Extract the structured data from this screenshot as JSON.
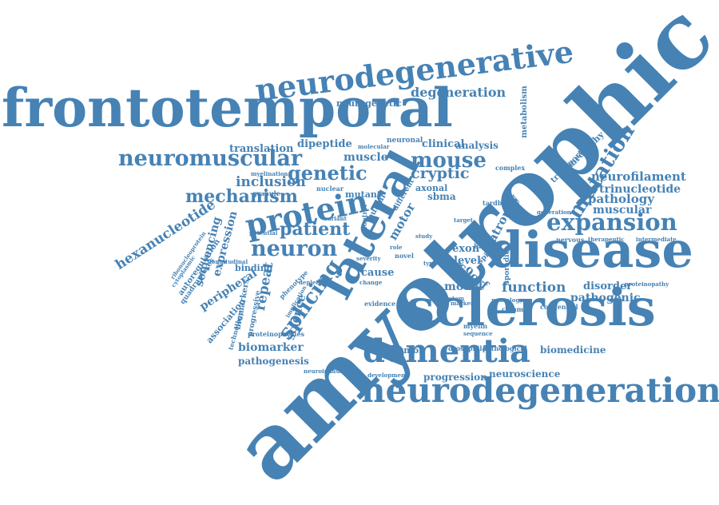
{
  "word_color": "#4682b4",
  "background": "#ffffff",
  "words": [
    {
      "text": "amyotrophic",
      "emphasis": "largest",
      "orientation": "diagonal-up"
    },
    {
      "text": "frontotemporal",
      "emphasis": "very-large",
      "orientation": "horizontal"
    },
    {
      "text": "sclerosis",
      "emphasis": "very-large",
      "orientation": "horizontal"
    },
    {
      "text": "disease",
      "emphasis": "very-large",
      "orientation": "horizontal"
    },
    {
      "text": "neurodegeneration",
      "emphasis": "large",
      "orientation": "horizontal"
    },
    {
      "text": "lateral",
      "emphasis": "large",
      "orientation": "diagonal-up"
    },
    {
      "text": "neurodegenerative",
      "emphasis": "large",
      "orientation": "slight-tilt"
    },
    {
      "text": "dementia",
      "emphasis": "large",
      "orientation": "horizontal"
    },
    {
      "text": "protein",
      "emphasis": "large",
      "orientation": "slight-tilt"
    },
    {
      "text": "neuromuscular",
      "emphasis": "medium",
      "orientation": "horizontal"
    },
    {
      "text": "expansion",
      "emphasis": "medium",
      "orientation": "horizontal"
    },
    {
      "text": "mutation",
      "emphasis": "medium",
      "orientation": "diagonal-up"
    },
    {
      "text": "genetic",
      "emphasis": "medium",
      "orientation": "horizontal"
    },
    {
      "text": "mouse",
      "emphasis": "medium",
      "orientation": "horizontal"
    },
    {
      "text": "neuron",
      "emphasis": "medium",
      "orientation": "horizontal"
    },
    {
      "text": "patient",
      "emphasis": "medium",
      "orientation": "horizontal"
    },
    {
      "text": "mechanism",
      "emphasis": "medium",
      "orientation": "horizontal"
    },
    {
      "text": "splicing",
      "emphasis": "medium",
      "orientation": "diagonal-up"
    },
    {
      "text": "degeneration",
      "emphasis": "small",
      "orientation": "horizontal"
    },
    {
      "text": "neurogenetic",
      "emphasis": "small",
      "orientation": "horizontal"
    },
    {
      "text": "metabolism",
      "emphasis": "small",
      "orientation": "vertical"
    },
    {
      "text": "translation",
      "emphasis": "small",
      "orientation": "horizontal"
    },
    {
      "text": "dipeptide",
      "emphasis": "small",
      "orientation": "horizontal"
    },
    {
      "text": "cryptic",
      "emphasis": "small",
      "orientation": "horizontal"
    },
    {
      "text": "muscle",
      "emphasis": "small",
      "orientation": "horizontal"
    },
    {
      "text": "clinical",
      "emphasis": "small",
      "orientation": "horizontal"
    },
    {
      "text": "analysis",
      "emphasis": "small",
      "orientation": "horizontal"
    },
    {
      "text": "inclusion",
      "emphasis": "small",
      "orientation": "horizontal"
    },
    {
      "text": "neurofilament",
      "emphasis": "small",
      "orientation": "horizontal"
    },
    {
      "text": "trinucleotide",
      "emphasis": "small",
      "orientation": "horizontal"
    },
    {
      "text": "pathology",
      "emphasis": "small",
      "orientation": "horizontal"
    },
    {
      "text": "muscular",
      "emphasis": "small",
      "orientation": "horizontal"
    },
    {
      "text": "hexanucleotide",
      "emphasis": "small",
      "orientation": "diagonal-up"
    },
    {
      "text": "sequencing",
      "emphasis": "small",
      "orientation": "vertical"
    },
    {
      "text": "expression",
      "emphasis": "small",
      "orientation": "vertical"
    },
    {
      "text": "repeat",
      "emphasis": "small",
      "orientation": "vertical"
    },
    {
      "text": "science",
      "emphasis": "small",
      "orientation": "vertical"
    },
    {
      "text": "peripheral",
      "emphasis": "small",
      "orientation": "diagonal-up"
    },
    {
      "text": "biomarker",
      "emphasis": "small",
      "orientation": "horizontal"
    },
    {
      "text": "pathogenesis",
      "emphasis": "small",
      "orientation": "horizontal"
    },
    {
      "text": "function",
      "emphasis": "small",
      "orientation": "horizontal"
    },
    {
      "text": "disorder",
      "emphasis": "small",
      "orientation": "horizontal"
    },
    {
      "text": "pathogenic",
      "emphasis": "small",
      "orientation": "horizontal"
    },
    {
      "text": "biomedicine",
      "emphasis": "small",
      "orientation": "horizontal"
    },
    {
      "text": "neuroscience",
      "emphasis": "small",
      "orientation": "horizontal"
    },
    {
      "text": "progression",
      "emphasis": "small",
      "orientation": "horizontal"
    },
    {
      "text": "plasmon",
      "emphasis": "small",
      "orientation": "horizontal"
    },
    {
      "text": "model",
      "emphasis": "small",
      "orientation": "horizontal"
    },
    {
      "text": "exon",
      "emphasis": "small",
      "orientation": "horizontal"
    },
    {
      "text": "level",
      "emphasis": "small",
      "orientation": "horizontal"
    },
    {
      "text": "motor",
      "emphasis": "small",
      "orientation": "diagonal-up"
    },
    {
      "text": "sbma",
      "emphasis": "small",
      "orientation": "horizontal"
    },
    {
      "text": "axonal",
      "emphasis": "small",
      "orientation": "horizontal"
    },
    {
      "text": "atrophy",
      "emphasis": "small",
      "orientation": "diagonal-up"
    },
    {
      "text": "c9orf",
      "emphasis": "small",
      "orientation": "diagonal-down"
    },
    {
      "text": "cause",
      "emphasis": "small",
      "orientation": "horizontal"
    },
    {
      "text": "binding",
      "emphasis": "small",
      "orientation": "horizontal"
    },
    {
      "text": "association",
      "emphasis": "small",
      "orientation": "diagonal-up"
    },
    {
      "text": "progressive",
      "emphasis": "tiny",
      "orientation": "vertical"
    },
    {
      "text": "biomarkers",
      "emphasis": "tiny",
      "orientation": "vertical"
    },
    {
      "text": "autoregulation",
      "emphasis": "tiny",
      "orientation": "diagonal-up"
    },
    {
      "text": "ribonucleoprotein",
      "emphasis": "tiny",
      "orientation": "diagonal-up"
    },
    {
      "text": "quadruplexes",
      "emphasis": "tiny",
      "orientation": "diagonal-up"
    },
    {
      "text": "technology",
      "emphasis": "tiny",
      "orientation": "vertical"
    },
    {
      "text": "proteinopathies",
      "emphasis": "tiny",
      "orientation": "horizontal"
    },
    {
      "text": "myelin",
      "emphasis": "tiny",
      "orientation": "horizontal"
    },
    {
      "text": "drosophila",
      "emphasis": "tiny",
      "orientation": "horizontal"
    },
    {
      "text": "pathological",
      "emphasis": "tiny",
      "orientation": "horizontal"
    },
    {
      "text": "neurology",
      "emphasis": "tiny",
      "orientation": "horizontal"
    },
    {
      "text": "common",
      "emphasis": "tiny",
      "orientation": "horizontal"
    },
    {
      "text": "congenital",
      "emphasis": "tiny",
      "orientation": "horizontal"
    },
    {
      "text": "nervous",
      "emphasis": "tiny",
      "orientation": "horizontal"
    },
    {
      "text": "therapeutic",
      "emphasis": "tiny",
      "orientation": "horizontal"
    },
    {
      "text": "intermediate",
      "emphasis": "tiny",
      "orientation": "horizontal"
    },
    {
      "text": "proteinopathy",
      "emphasis": "tiny",
      "orientation": "horizontal"
    },
    {
      "text": "neuropathy",
      "emphasis": "tiny",
      "orientation": "diagonal-up"
    },
    {
      "text": "transport",
      "emphasis": "tiny",
      "orientation": "diagonal-up"
    },
    {
      "text": "tardbp",
      "emphasis": "tiny",
      "orientation": "horizontal"
    },
    {
      "text": "human",
      "emphasis": "tiny",
      "orientation": "horizontal"
    },
    {
      "text": "spinal",
      "emphasis": "tiny",
      "orientation": "diagonal-up"
    },
    {
      "text": "system",
      "emphasis": "tiny",
      "orientation": "horizontal"
    },
    {
      "text": "novel",
      "emphasis": "tiny",
      "orientation": "horizontal"
    },
    {
      "text": "mutant",
      "emphasis": "tiny",
      "orientation": "horizontal"
    },
    {
      "text": "bulbar",
      "emphasis": "tiny",
      "orientation": "diagonal-up"
    },
    {
      "text": "nuclear",
      "emphasis": "tiny",
      "orientation": "horizontal"
    },
    {
      "text": "granule",
      "emphasis": "tiny",
      "orientation": "horizontal"
    },
    {
      "text": "myelination",
      "emphasis": "tiny",
      "orientation": "horizontal"
    },
    {
      "text": "neuronal",
      "emphasis": "tiny",
      "orientation": "horizontal"
    },
    {
      "text": "complex",
      "emphasis": "tiny",
      "orientation": "horizontal"
    },
    {
      "text": "different",
      "emphasis": "tiny",
      "orientation": "diagonal-up"
    },
    {
      "text": "variant",
      "emphasis": "tiny",
      "orientation": "horizontal"
    },
    {
      "text": "potential",
      "emphasis": "tiny",
      "orientation": "horizontal"
    },
    {
      "text": "depletion",
      "emphasis": "tiny",
      "orientation": "horizontal"
    },
    {
      "text": "phenotype",
      "emphasis": "tiny",
      "orientation": "diagonal-up"
    },
    {
      "text": "severity",
      "emphasis": "tiny",
      "orientation": "horizontal"
    },
    {
      "text": "evidence",
      "emphasis": "tiny",
      "orientation": "horizontal"
    },
    {
      "text": "development",
      "emphasis": "tiny",
      "orientation": "horizontal"
    },
    {
      "text": "neuroimmunology",
      "emphasis": "tiny",
      "orientation": "horizontal"
    },
    {
      "text": "generation",
      "emphasis": "tiny",
      "orientation": "horizontal"
    },
    {
      "text": "cohort",
      "emphasis": "tiny",
      "orientation": "horizontal"
    },
    {
      "text": "target",
      "emphasis": "tiny",
      "orientation": "horizontal"
    },
    {
      "text": "role",
      "emphasis": "tiny",
      "orientation": "horizontal"
    },
    {
      "text": "loss",
      "emphasis": "tiny",
      "orientation": "horizontal"
    },
    {
      "text": "case",
      "emphasis": "tiny",
      "orientation": "horizontal"
    },
    {
      "text": "change",
      "emphasis": "tiny",
      "orientation": "horizontal"
    },
    {
      "text": "sporadic",
      "emphasis": "tiny",
      "orientation": "vertical"
    },
    {
      "text": "control",
      "emphasis": "tiny",
      "orientation": "vertical"
    },
    {
      "text": "implication",
      "emphasis": "tiny",
      "orientation": "diagonal-up"
    },
    {
      "text": "longitudinal",
      "emphasis": "tiny",
      "orientation": "horizontal"
    },
    {
      "text": "cytoplasmic",
      "emphasis": "tiny",
      "orientation": "diagonal-up"
    },
    {
      "text": "molecular",
      "emphasis": "tiny",
      "orientation": "horizontal"
    },
    {
      "text": "study",
      "emphasis": "tiny",
      "orientation": "horizontal"
    },
    {
      "text": "type",
      "emphasis": "tiny",
      "orientation": "horizontal"
    },
    {
      "text": "marker",
      "emphasis": "tiny",
      "orientation": "horizontal"
    },
    {
      "text": "sequence",
      "emphasis": "tiny",
      "orientation": "horizontal"
    }
  ]
}
